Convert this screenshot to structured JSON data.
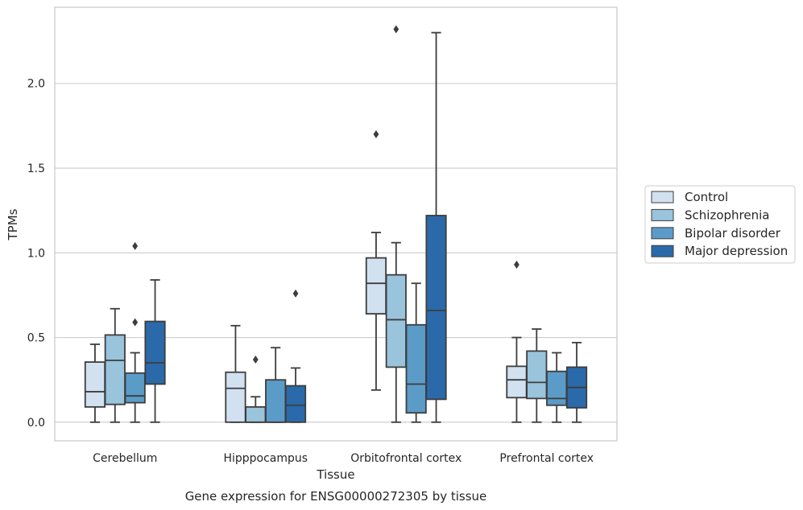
{
  "chart_data": {
    "type": "box",
    "xlabel": "Tissue",
    "ylabel": "TPMs",
    "caption": "Gene expression for ENSG00000272305 by tissue",
    "categories": [
      "Cerebellum",
      "Hipppocampus",
      "Orbitofrontal cortex",
      "Prefrontal cortex"
    ],
    "ylim": [
      -0.11,
      2.45
    ],
    "yticks": [
      0.0,
      0.5,
      1.0,
      1.5,
      2.0
    ],
    "ytick_labels": [
      "0.0",
      "0.5",
      "1.0",
      "1.5",
      "2.0"
    ],
    "grid": "horizontal",
    "legend_position": "right",
    "series": [
      {
        "name": "Control",
        "color": "#d1e1f0",
        "boxes": [
          {
            "whislo": 0.0,
            "q1": 0.09,
            "med": 0.18,
            "q3": 0.355,
            "whishi": 0.46,
            "fliers": []
          },
          {
            "whislo": 0.0,
            "q1": 0.0,
            "med": 0.2,
            "q3": 0.295,
            "whishi": 0.57,
            "fliers": []
          },
          {
            "whislo": 0.19,
            "q1": 0.64,
            "med": 0.82,
            "q3": 0.97,
            "whishi": 1.12,
            "fliers": [
              1.7
            ]
          },
          {
            "whislo": 0.0,
            "q1": 0.145,
            "med": 0.25,
            "q3": 0.33,
            "whishi": 0.5,
            "fliers": [
              0.93
            ]
          }
        ]
      },
      {
        "name": "Schizophrenia",
        "color": "#9ac3dc",
        "boxes": [
          {
            "whislo": 0.0,
            "q1": 0.105,
            "med": 0.365,
            "q3": 0.515,
            "whishi": 0.67,
            "fliers": []
          },
          {
            "whislo": 0.0,
            "q1": 0.0,
            "med": 0.0,
            "q3": 0.09,
            "whishi": 0.15,
            "fliers": [
              0.37
            ]
          },
          {
            "whislo": 0.0,
            "q1": 0.325,
            "med": 0.605,
            "q3": 0.87,
            "whishi": 1.06,
            "fliers": [
              2.32
            ]
          },
          {
            "whislo": 0.0,
            "q1": 0.14,
            "med": 0.235,
            "q3": 0.42,
            "whishi": 0.55,
            "fliers": []
          }
        ]
      },
      {
        "name": "Bipolar disorder",
        "color": "#5b9bc8",
        "boxes": [
          {
            "whislo": 0.0,
            "q1": 0.115,
            "med": 0.155,
            "q3": 0.29,
            "whishi": 0.41,
            "fliers": [
              0.59,
              1.04
            ]
          },
          {
            "whislo": 0.0,
            "q1": 0.0,
            "med": 0.0,
            "q3": 0.25,
            "whishi": 0.44,
            "fliers": []
          },
          {
            "whislo": 0.0,
            "q1": 0.055,
            "med": 0.225,
            "q3": 0.575,
            "whishi": 0.82,
            "fliers": []
          },
          {
            "whislo": 0.0,
            "q1": 0.1,
            "med": 0.14,
            "q3": 0.3,
            "whishi": 0.41,
            "fliers": []
          }
        ]
      },
      {
        "name": "Major depression",
        "color": "#2a6aaa",
        "boxes": [
          {
            "whislo": 0.0,
            "q1": 0.225,
            "med": 0.35,
            "q3": 0.595,
            "whishi": 0.84,
            "fliers": []
          },
          {
            "whislo": 0.0,
            "q1": 0.0,
            "med": 0.1,
            "q3": 0.215,
            "whishi": 0.32,
            "fliers": [
              0.76
            ]
          },
          {
            "whislo": 0.0,
            "q1": 0.135,
            "med": 0.66,
            "q3": 1.22,
            "whishi": 2.3,
            "fliers": []
          },
          {
            "whislo": 0.0,
            "q1": 0.085,
            "med": 0.205,
            "q3": 0.325,
            "whishi": 0.47,
            "fliers": []
          }
        ]
      }
    ]
  }
}
